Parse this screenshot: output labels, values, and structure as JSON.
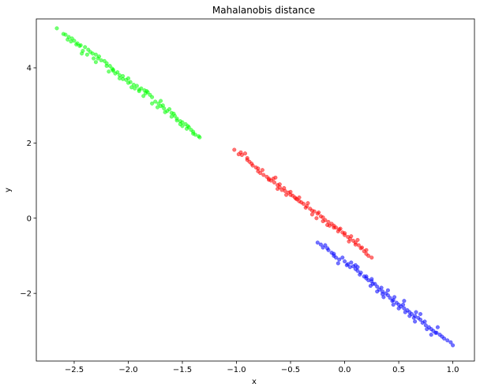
{
  "chart_data": {
    "type": "scatter",
    "title": "Mahalanobis distance",
    "xlabel": "x",
    "ylabel": "y",
    "xlim": [
      -2.85,
      1.2
    ],
    "ylim": [
      -3.8,
      5.3
    ],
    "grid": false,
    "legend": "none",
    "x_ticks": [
      {
        "value": -2.5,
        "label": "−2.5"
      },
      {
        "value": -2.0,
        "label": "−2.0"
      },
      {
        "value": -1.5,
        "label": "−1.5"
      },
      {
        "value": -1.0,
        "label": "−1.0"
      },
      {
        "value": -0.5,
        "label": "−0.5"
      },
      {
        "value": 0.0,
        "label": "0.0"
      },
      {
        "value": 0.5,
        "label": "0.5"
      },
      {
        "value": 1.0,
        "label": "1.0"
      }
    ],
    "y_ticks": [
      {
        "value": -2,
        "label": "−2"
      },
      {
        "value": 0,
        "label": "0"
      },
      {
        "value": 2,
        "label": "2"
      },
      {
        "value": 4,
        "label": "4"
      }
    ],
    "series": [
      {
        "color": "#00ff00",
        "points": [
          [
            -2.66,
            5.05
          ],
          [
            -2.58,
            4.88
          ],
          [
            -2.55,
            4.82
          ],
          [
            -2.52,
            4.78
          ],
          [
            -2.5,
            4.72
          ],
          [
            -2.47,
            4.65
          ],
          [
            -2.44,
            4.6
          ],
          [
            -2.4,
            4.55
          ],
          [
            -2.37,
            4.48
          ],
          [
            -2.33,
            4.38
          ],
          [
            -2.3,
            4.35
          ],
          [
            -2.28,
            4.25
          ],
          [
            -2.25,
            4.2
          ],
          [
            -2.2,
            4.12
          ],
          [
            -2.17,
            4.05
          ],
          [
            -2.14,
            3.95
          ],
          [
            -2.1,
            3.88
          ],
          [
            -2.08,
            3.8
          ],
          [
            -2.05,
            3.78
          ],
          [
            -2.02,
            3.68
          ],
          [
            -1.98,
            3.62
          ],
          [
            -1.95,
            3.55
          ],
          [
            -1.92,
            3.52
          ],
          [
            -1.88,
            3.45
          ],
          [
            -1.85,
            3.4
          ],
          [
            -1.82,
            3.35
          ],
          [
            -1.8,
            3.28
          ],
          [
            -1.78,
            3.22
          ],
          [
            -1.75,
            3.1
          ],
          [
            -1.72,
            3.05
          ],
          [
            -1.7,
            2.98
          ],
          [
            -1.67,
            2.92
          ],
          [
            -1.64,
            2.85
          ],
          [
            -1.6,
            2.8
          ],
          [
            -1.57,
            2.72
          ],
          [
            -1.55,
            2.65
          ],
          [
            -1.52,
            2.58
          ],
          [
            -1.5,
            2.55
          ],
          [
            -1.47,
            2.5
          ],
          [
            -1.45,
            2.45
          ],
          [
            -1.42,
            2.35
          ],
          [
            -1.4,
            2.3
          ],
          [
            -1.38,
            2.22
          ],
          [
            -1.35,
            2.18
          ],
          [
            -1.34,
            2.15
          ],
          [
            -2.56,
            4.75
          ],
          [
            -2.48,
            4.62
          ],
          [
            -2.42,
            4.45
          ],
          [
            -2.35,
            4.42
          ],
          [
            -2.27,
            4.3
          ],
          [
            -2.22,
            4.18
          ],
          [
            -2.15,
            3.98
          ],
          [
            -2.12,
            3.85
          ],
          [
            -2.05,
            3.7
          ],
          [
            -2.0,
            3.72
          ],
          [
            -1.94,
            3.45
          ],
          [
            -1.9,
            3.38
          ],
          [
            -1.84,
            3.32
          ],
          [
            -1.78,
            3.05
          ],
          [
            -1.68,
            3.0
          ],
          [
            -1.62,
            2.9
          ],
          [
            -1.58,
            2.78
          ],
          [
            -1.52,
            2.5
          ],
          [
            -1.46,
            2.38
          ],
          [
            -1.4,
            2.25
          ],
          [
            -2.6,
            4.9
          ],
          [
            -2.53,
            4.7
          ],
          [
            -2.45,
            4.58
          ],
          [
            -2.38,
            4.35
          ],
          [
            -2.32,
            4.25
          ],
          [
            -2.2,
            4.05
          ],
          [
            -2.14,
            3.92
          ],
          [
            -2.08,
            3.72
          ],
          [
            -1.97,
            3.48
          ],
          [
            -1.9,
            3.42
          ],
          [
            -1.83,
            3.38
          ],
          [
            -1.73,
            2.95
          ],
          [
            -1.66,
            2.82
          ],
          [
            -1.6,
            2.7
          ],
          [
            -1.5,
            2.45
          ],
          [
            -2.43,
            4.38
          ],
          [
            -2.18,
            3.9
          ],
          [
            -1.86,
            3.25
          ],
          [
            -1.55,
            2.6
          ],
          [
            -2.3,
            4.15
          ],
          [
            -2.0,
            3.6
          ],
          [
            -1.7,
            3.12
          ],
          [
            -1.44,
            2.42
          ]
        ]
      },
      {
        "color": "#ff0000",
        "points": [
          [
            -1.02,
            1.82
          ],
          [
            -0.98,
            1.7
          ],
          [
            -0.95,
            1.68
          ],
          [
            -0.92,
            1.72
          ],
          [
            -0.9,
            1.6
          ],
          [
            -0.88,
            1.5
          ],
          [
            -0.85,
            1.4
          ],
          [
            -0.82,
            1.35
          ],
          [
            -0.8,
            1.25
          ],
          [
            -0.78,
            1.2
          ],
          [
            -0.75,
            1.15
          ],
          [
            -0.72,
            1.1
          ],
          [
            -0.7,
            1.02
          ],
          [
            -0.68,
            1.0
          ],
          [
            -0.65,
            0.95
          ],
          [
            -0.62,
            0.88
          ],
          [
            -0.6,
            0.82
          ],
          [
            -0.58,
            0.75
          ],
          [
            -0.55,
            0.72
          ],
          [
            -0.52,
            0.68
          ],
          [
            -0.5,
            0.62
          ],
          [
            -0.48,
            0.6
          ],
          [
            -0.45,
            0.52
          ],
          [
            -0.42,
            0.45
          ],
          [
            -0.4,
            0.42
          ],
          [
            -0.38,
            0.38
          ],
          [
            -0.35,
            0.32
          ],
          [
            -0.32,
            0.25
          ],
          [
            -0.3,
            0.2
          ],
          [
            -0.28,
            0.18
          ],
          [
            -0.25,
            0.12
          ],
          [
            -0.22,
            0.05
          ],
          [
            -0.2,
            0.02
          ],
          [
            -0.18,
            -0.05
          ],
          [
            -0.15,
            -0.1
          ],
          [
            -0.12,
            -0.15
          ],
          [
            -0.1,
            -0.2
          ],
          [
            -0.08,
            -0.25
          ],
          [
            -0.05,
            -0.3
          ],
          [
            -0.02,
            -0.38
          ],
          [
            0.0,
            -0.45
          ],
          [
            0.03,
            -0.5
          ],
          [
            0.05,
            -0.55
          ],
          [
            0.08,
            -0.6
          ],
          [
            0.1,
            -0.65
          ],
          [
            0.13,
            -0.72
          ],
          [
            0.15,
            -0.8
          ],
          [
            0.18,
            -0.88
          ],
          [
            0.2,
            -0.95
          ],
          [
            0.25,
            -1.05
          ],
          [
            -0.96,
            1.75
          ],
          [
            -0.86,
            1.45
          ],
          [
            -0.76,
            1.28
          ],
          [
            -0.66,
            1.05
          ],
          [
            -0.6,
            0.9
          ],
          [
            -0.56,
            0.8
          ],
          [
            -0.46,
            0.55
          ],
          [
            -0.36,
            0.28
          ],
          [
            -0.26,
            0.0
          ],
          [
            -0.16,
            -0.18
          ],
          [
            -0.06,
            -0.35
          ],
          [
            0.04,
            -0.62
          ],
          [
            0.12,
            -0.58
          ],
          [
            0.22,
            -1.0
          ],
          [
            -0.9,
            1.55
          ],
          [
            -0.7,
            1.05
          ],
          [
            -0.54,
            0.62
          ],
          [
            -0.44,
            0.5
          ],
          [
            -0.34,
            0.4
          ],
          [
            -0.24,
            0.15
          ],
          [
            -0.14,
            -0.2
          ],
          [
            -0.04,
            -0.28
          ],
          [
            0.06,
            -0.48
          ],
          [
            0.16,
            -0.78
          ],
          [
            -0.8,
            1.32
          ],
          [
            -0.62,
            0.78
          ],
          [
            -0.42,
            0.55
          ],
          [
            -0.2,
            -0.08
          ],
          [
            0.0,
            -0.4
          ],
          [
            0.1,
            -0.7
          ],
          [
            -0.64,
            1.08
          ],
          [
            -0.5,
            0.7
          ],
          [
            -0.3,
            0.1
          ],
          [
            -0.1,
            -0.25
          ],
          [
            0.2,
            -0.85
          ]
        ]
      },
      {
        "color": "#0000ff",
        "points": [
          [
            -0.25,
            -0.65
          ],
          [
            -0.22,
            -0.7
          ],
          [
            -0.2,
            -0.78
          ],
          [
            -0.18,
            -0.72
          ],
          [
            -0.15,
            -0.85
          ],
          [
            -0.12,
            -0.92
          ],
          [
            -0.1,
            -1.0
          ],
          [
            -0.08,
            -1.05
          ],
          [
            -0.05,
            -1.1
          ],
          [
            -0.02,
            -1.05
          ],
          [
            0.0,
            -1.15
          ],
          [
            0.03,
            -1.22
          ],
          [
            0.05,
            -1.3
          ],
          [
            0.08,
            -1.28
          ],
          [
            0.1,
            -1.35
          ],
          [
            0.12,
            -1.4
          ],
          [
            0.15,
            -1.45
          ],
          [
            0.18,
            -1.55
          ],
          [
            0.2,
            -1.6
          ],
          [
            0.22,
            -1.65
          ],
          [
            0.25,
            -1.68
          ],
          [
            0.28,
            -1.75
          ],
          [
            0.3,
            -1.82
          ],
          [
            0.32,
            -1.9
          ],
          [
            0.35,
            -1.95
          ],
          [
            0.38,
            -2.0
          ],
          [
            0.4,
            -2.05
          ],
          [
            0.42,
            -2.12
          ],
          [
            0.45,
            -2.18
          ],
          [
            0.48,
            -2.25
          ],
          [
            0.5,
            -2.3
          ],
          [
            0.52,
            -2.35
          ],
          [
            0.55,
            -2.4
          ],
          [
            0.58,
            -2.45
          ],
          [
            0.6,
            -2.5
          ],
          [
            0.62,
            -2.55
          ],
          [
            0.65,
            -2.6
          ],
          [
            0.68,
            -2.65
          ],
          [
            0.7,
            -2.7
          ],
          [
            0.72,
            -2.78
          ],
          [
            0.75,
            -2.85
          ],
          [
            0.78,
            -2.9
          ],
          [
            0.8,
            -2.95
          ],
          [
            0.82,
            -3.0
          ],
          [
            0.85,
            -3.05
          ],
          [
            0.88,
            -3.1
          ],
          [
            0.9,
            -3.15
          ],
          [
            0.95,
            -3.25
          ],
          [
            0.98,
            -3.3
          ],
          [
            1.0,
            -3.38
          ],
          [
            -0.16,
            -0.8
          ],
          [
            -0.06,
            -1.2
          ],
          [
            0.06,
            -1.18
          ],
          [
            0.14,
            -1.5
          ],
          [
            0.24,
            -1.8
          ],
          [
            0.34,
            -1.85
          ],
          [
            0.44,
            -2.2
          ],
          [
            0.54,
            -2.3
          ],
          [
            0.64,
            -2.65
          ],
          [
            0.74,
            -2.75
          ],
          [
            0.84,
            -3.05
          ],
          [
            0.92,
            -3.2
          ],
          [
            -0.1,
            -0.95
          ],
          [
            0.02,
            -1.25
          ],
          [
            0.12,
            -1.3
          ],
          [
            0.26,
            -1.75
          ],
          [
            0.36,
            -2.1
          ],
          [
            0.46,
            -2.1
          ],
          [
            0.56,
            -2.5
          ],
          [
            0.66,
            -2.5
          ],
          [
            0.76,
            -2.95
          ],
          [
            0.86,
            -2.9
          ],
          [
            0.3,
            -1.95
          ],
          [
            0.4,
            -1.92
          ],
          [
            0.5,
            -2.4
          ],
          [
            0.6,
            -2.6
          ],
          [
            0.7,
            -2.55
          ],
          [
            0.8,
            -3.1
          ],
          [
            0.2,
            -1.55
          ],
          [
            0.1,
            -1.25
          ],
          [
            0.45,
            -2.3
          ],
          [
            0.55,
            -2.2
          ],
          [
            0.65,
            -2.75
          ],
          [
            0.35,
            -2.02
          ],
          [
            0.25,
            -1.62
          ]
        ]
      }
    ]
  }
}
